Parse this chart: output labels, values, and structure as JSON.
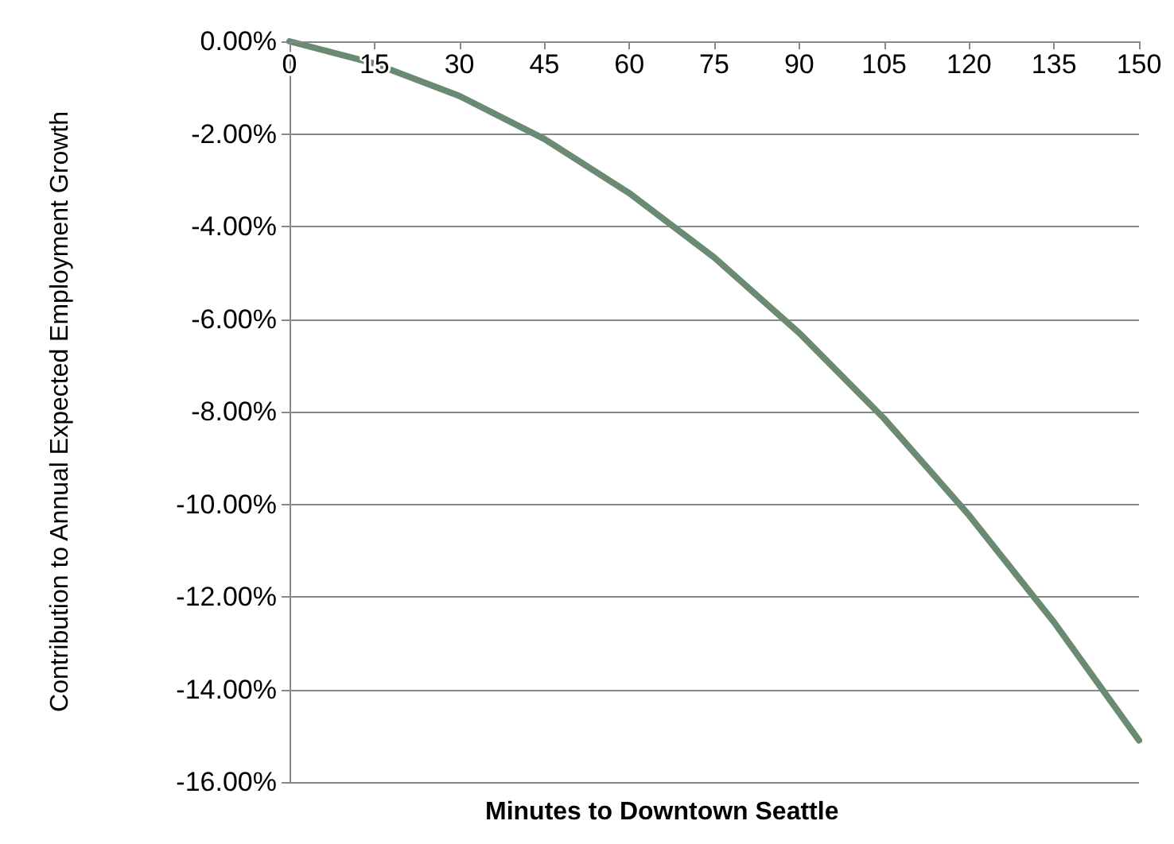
{
  "chart_data": {
    "type": "line",
    "xlabel": "Minutes to Downtown Seattle",
    "ylabel": "Contribution to Annual Expected Employment Growth",
    "x": [
      0,
      15,
      30,
      45,
      60,
      75,
      90,
      105,
      120,
      135,
      150
    ],
    "series": [
      {
        "color": "#6b8a72",
        "values": [
          0,
          -0.48,
          -1.18,
          -2.11,
          -3.28,
          -4.67,
          -6.3,
          -8.15,
          -10.24,
          -12.55,
          -15.1
        ]
      }
    ],
    "xlim": [
      0,
      150
    ],
    "xticks": [
      0,
      15,
      30,
      45,
      60,
      75,
      90,
      105,
      120,
      135,
      150
    ],
    "ylim": [
      -16,
      0
    ],
    "yticks": [
      {
        "value": -16,
        "label": "-16.00%"
      },
      {
        "value": -14,
        "label": "-14.00%"
      },
      {
        "value": -12,
        "label": "-12.00%"
      },
      {
        "value": -10,
        "label": "-10.00%"
      },
      {
        "value": -8,
        "label": "-8.00%"
      },
      {
        "value": -6,
        "label": "-6.00%"
      },
      {
        "value": -4,
        "label": "-4.00%"
      },
      {
        "value": -2,
        "label": "-2.00%"
      },
      {
        "value": 0,
        "label": "0.00%"
      }
    ],
    "grid": "y",
    "marker": "none",
    "line_style": "solid"
  }
}
